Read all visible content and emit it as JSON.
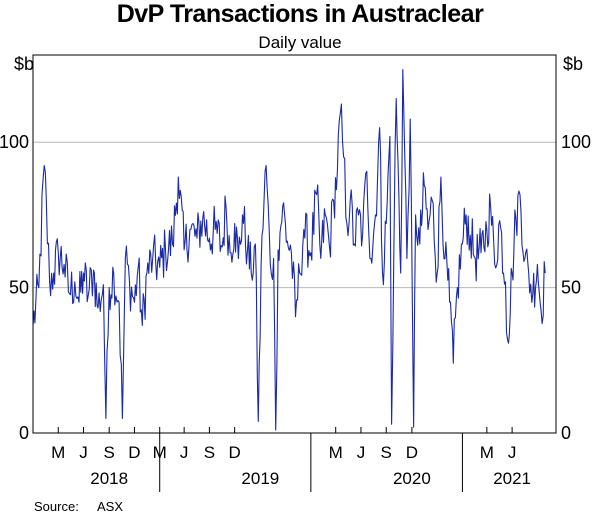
{
  "chart_data": {
    "type": "line",
    "title": "DvP Transactions in Austraclear",
    "subtitle": "Daily value",
    "y_unit_left": "$b",
    "y_unit_right": "$b",
    "ylim": [
      0,
      130
    ],
    "yticks": [
      0,
      50,
      100
    ],
    "ytick_labels": [
      "0",
      "50",
      "100"
    ],
    "x_range": [
      "2018-03-01",
      "2021-08-15"
    ],
    "month_ticks": [
      {
        "date": "2018-05-01",
        "label": "M"
      },
      {
        "date": "2018-07-01",
        "label": "J"
      },
      {
        "date": "2018-09-01",
        "label": "S"
      },
      {
        "date": "2018-11-01",
        "label": "D"
      },
      {
        "date": "2019-01-01",
        "label": "M"
      },
      {
        "date": "2019-03-01",
        "label": "J"
      },
      {
        "date": "2019-05-01",
        "label": "S"
      },
      {
        "date": "2019-07-01",
        "label": "D"
      },
      {
        "date": "2020-03-01",
        "label": "M"
      },
      {
        "date": "2020-05-01",
        "label": "J"
      },
      {
        "date": "2020-07-01",
        "label": "S"
      },
      {
        "date": "2020-09-01",
        "label": "D"
      },
      {
        "date": "2021-03-01",
        "label": "M"
      },
      {
        "date": "2021-05-01",
        "label": "J"
      }
    ],
    "years": [
      {
        "label": "2018",
        "center": "2018-09-01"
      },
      {
        "label": "2019",
        "center": "2019-09-01"
      },
      {
        "label": "2020",
        "center": "2020-09-01"
      },
      {
        "label": "2021",
        "center": "2021-05-01"
      }
    ],
    "grid": true,
    "series": [
      {
        "color": "#1a2aa8",
        "points": [
          [
            "2018-03-01",
            37
          ],
          [
            "2018-03-15",
            50
          ],
          [
            "2018-03-28",
            92
          ],
          [
            "2018-04-10",
            52
          ],
          [
            "2018-04-20",
            55
          ],
          [
            "2018-05-01",
            62
          ],
          [
            "2018-05-15",
            58
          ],
          [
            "2018-05-28",
            48
          ],
          [
            "2018-06-10",
            52
          ],
          [
            "2018-06-20",
            45
          ],
          [
            "2018-07-01",
            55
          ],
          [
            "2018-07-12",
            47
          ],
          [
            "2018-07-25",
            56
          ],
          [
            "2018-08-05",
            43
          ],
          [
            "2018-08-18",
            51
          ],
          [
            "2018-08-24",
            5
          ],
          [
            "2018-09-01",
            50
          ],
          [
            "2018-09-12",
            55
          ],
          [
            "2018-09-25",
            45
          ],
          [
            "2018-10-03",
            5
          ],
          [
            "2018-10-10",
            60
          ],
          [
            "2018-10-20",
            52
          ],
          [
            "2018-11-01",
            45
          ],
          [
            "2018-11-10",
            57
          ],
          [
            "2018-11-20",
            37
          ],
          [
            "2018-12-01",
            55
          ],
          [
            "2018-12-15",
            60
          ],
          [
            "2019-01-01",
            57
          ],
          [
            "2019-01-15",
            63
          ],
          [
            "2019-02-01",
            65
          ],
          [
            "2019-02-15",
            88
          ],
          [
            "2019-03-01",
            63
          ],
          [
            "2019-03-15",
            70
          ],
          [
            "2019-04-01",
            67
          ],
          [
            "2019-04-15",
            74
          ],
          [
            "2019-05-01",
            67
          ],
          [
            "2019-05-15",
            70
          ],
          [
            "2019-06-01",
            64
          ],
          [
            "2019-06-10",
            78
          ],
          [
            "2019-06-20",
            62
          ],
          [
            "2019-07-01",
            72
          ],
          [
            "2019-07-10",
            60
          ],
          [
            "2019-07-20",
            75
          ],
          [
            "2019-08-01",
            63
          ],
          [
            "2019-08-10",
            55
          ],
          [
            "2019-08-20",
            65
          ],
          [
            "2019-08-27",
            4
          ],
          [
            "2019-09-05",
            68
          ],
          [
            "2019-09-15",
            92
          ],
          [
            "2019-09-25",
            58
          ],
          [
            "2019-10-03",
            60
          ],
          [
            "2019-10-08",
            1
          ],
          [
            "2019-10-14",
            63
          ],
          [
            "2019-10-25",
            78
          ],
          [
            "2019-11-05",
            66
          ],
          [
            "2019-11-15",
            62
          ],
          [
            "2019-11-25",
            40
          ],
          [
            "2019-12-05",
            55
          ],
          [
            "2019-12-15",
            70
          ],
          [
            "2020-01-01",
            62
          ],
          [
            "2020-01-15",
            82
          ],
          [
            "2020-01-25",
            60
          ],
          [
            "2020-02-05",
            75
          ],
          [
            "2020-02-15",
            64
          ],
          [
            "2020-02-25",
            80
          ],
          [
            "2020-03-05",
            90
          ],
          [
            "2020-03-12",
            110
          ],
          [
            "2020-03-20",
            95
          ],
          [
            "2020-03-28",
            72
          ],
          [
            "2020-04-05",
            80
          ],
          [
            "2020-04-15",
            65
          ],
          [
            "2020-04-25",
            75
          ],
          [
            "2020-05-05",
            68
          ],
          [
            "2020-05-15",
            90
          ],
          [
            "2020-05-25",
            60
          ],
          [
            "2020-06-05",
            75
          ],
          [
            "2020-06-15",
            105
          ],
          [
            "2020-06-22",
            55
          ],
          [
            "2020-07-01",
            72
          ],
          [
            "2020-07-10",
            102
          ],
          [
            "2020-07-14",
            3
          ],
          [
            "2020-07-20",
            70
          ],
          [
            "2020-07-25",
            115
          ],
          [
            "2020-08-05",
            55
          ],
          [
            "2020-08-10",
            125
          ],
          [
            "2020-08-20",
            60
          ],
          [
            "2020-08-28",
            108
          ],
          [
            "2020-09-05",
            2
          ],
          [
            "2020-09-10",
            75
          ],
          [
            "2020-09-20",
            65
          ],
          [
            "2020-10-01",
            85
          ],
          [
            "2020-10-10",
            70
          ],
          [
            "2020-10-20",
            80
          ],
          [
            "2020-11-01",
            55
          ],
          [
            "2020-11-10",
            88
          ],
          [
            "2020-11-20",
            60
          ],
          [
            "2020-12-01",
            45
          ],
          [
            "2020-12-10",
            24
          ],
          [
            "2020-12-20",
            50
          ],
          [
            "2021-01-01",
            65
          ],
          [
            "2021-01-10",
            75
          ],
          [
            "2021-01-20",
            68
          ],
          [
            "2021-02-01",
            60
          ],
          [
            "2021-02-15",
            62
          ],
          [
            "2021-03-01",
            70
          ],
          [
            "2021-03-10",
            78
          ],
          [
            "2021-03-20",
            58
          ],
          [
            "2021-04-01",
            73
          ],
          [
            "2021-04-15",
            52
          ],
          [
            "2021-04-20",
            32
          ],
          [
            "2021-05-01",
            55
          ],
          [
            "2021-05-10",
            74
          ],
          [
            "2021-05-20",
            82
          ],
          [
            "2021-06-01",
            60
          ],
          [
            "2021-06-10",
            55
          ],
          [
            "2021-06-20",
            48
          ],
          [
            "2021-07-01",
            58
          ],
          [
            "2021-07-10",
            42
          ],
          [
            "2021-07-20",
            55
          ]
        ]
      }
    ]
  },
  "source": {
    "label": "Source:",
    "value": "ASX"
  }
}
